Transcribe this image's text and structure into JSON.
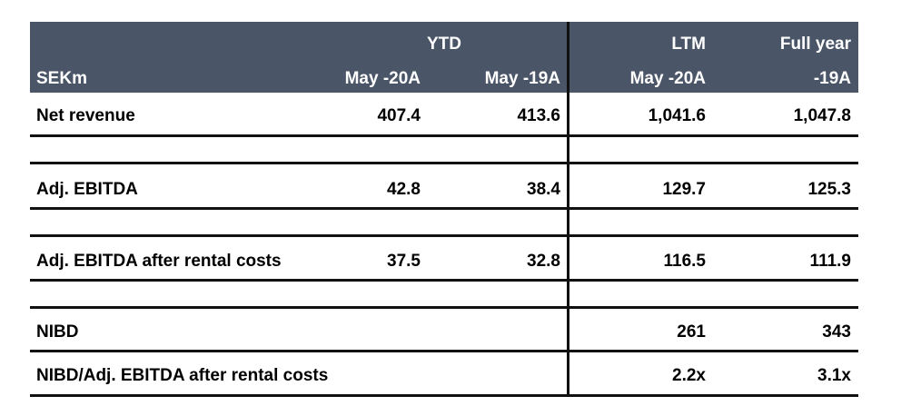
{
  "table": {
    "header": {
      "group_ytd": "YTD",
      "group_ltm": "LTM",
      "group_full_year": "Full year",
      "unit_label": "SEKm",
      "col1": "May -20A",
      "col2": "May -19A",
      "col3": "May -20A",
      "col4": "-19A"
    },
    "rows": [
      {
        "label": "Net revenue",
        "v1": "407.4",
        "v2": "413.6",
        "v3": "1,041.6",
        "v4": "1,047.8"
      },
      {
        "label": "Adj. EBITDA",
        "v1": "42.8",
        "v2": "38.4",
        "v3": "129.7",
        "v4": "125.3"
      },
      {
        "label": "Adj. EBITDA after rental costs",
        "v1": "37.5",
        "v2": "32.8",
        "v3": "116.5",
        "v4": "111.9"
      },
      {
        "label": "NIBD",
        "v1": "",
        "v2": "",
        "v3": "261",
        "v4": "343"
      },
      {
        "label": "NIBD/Adj. EBITDA after rental costs",
        "v1": "",
        "v2": "",
        "v3": "2.2x",
        "v4": "3.1x"
      }
    ],
    "colors": {
      "header_bg": "#4a5568",
      "header_text": "#ffffff",
      "rule": "#111111"
    }
  }
}
